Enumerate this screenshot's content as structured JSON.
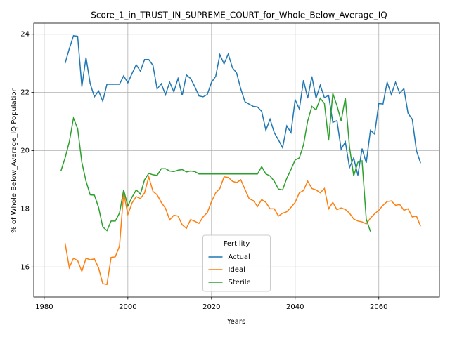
{
  "chart_data": {
    "type": "line",
    "title": "Score_1_in_TRUST_IN_SUPREME_COURT_for_Whole_Below_Average_IQ",
    "xlabel": "Years",
    "ylabel": "% of Whole Below_Average_IQ Population",
    "legend_title": "Fertility",
    "legend": "lower center",
    "grid": true,
    "xlim": [
      1977.5,
      2074.5
    ],
    "xticks": [
      1980,
      2000,
      2020,
      2040,
      2060
    ],
    "ylim": [
      14.97,
      24.38
    ],
    "yticks": [
      16,
      18,
      20,
      22,
      24
    ],
    "x": [
      1984,
      1985,
      1986,
      1987,
      1988,
      1989,
      1990,
      1991,
      1992,
      1993,
      1994,
      1995,
      1996,
      1997,
      1998,
      1999,
      2000,
      2001,
      2002,
      2003,
      2004,
      2005,
      2006,
      2007,
      2008,
      2009,
      2010,
      2011,
      2012,
      2013,
      2014,
      2015,
      2016,
      2017,
      2018,
      2019,
      2020,
      2021,
      2022,
      2023,
      2024,
      2025,
      2026,
      2027,
      2028,
      2029,
      2030,
      2031,
      2032,
      2033,
      2034,
      2035,
      2036,
      2037,
      2038,
      2039,
      2040,
      2041,
      2042,
      2043,
      2044,
      2045,
      2046,
      2047,
      2048,
      2049,
      2050,
      2051,
      2052,
      2053,
      2054,
      2055,
      2056,
      2057,
      2058,
      2059,
      2060,
      2061,
      2062,
      2063,
      2064,
      2065,
      2066,
      2067,
      2068,
      2069,
      2070
    ],
    "series": [
      {
        "name": "Actual",
        "color": "#1f77b4",
        "values": [
          null,
          23.0,
          23.5,
          23.95,
          23.93,
          22.2,
          23.2,
          22.3,
          21.85,
          22.05,
          21.7,
          22.28,
          22.28,
          22.28,
          22.28,
          22.57,
          22.33,
          22.65,
          22.95,
          22.73,
          23.13,
          23.13,
          22.93,
          22.12,
          22.3,
          21.92,
          22.35,
          22.02,
          22.48,
          21.9,
          22.6,
          22.48,
          22.2,
          21.88,
          21.85,
          21.93,
          22.35,
          22.55,
          23.3,
          22.98,
          23.32,
          22.85,
          22.67,
          22.12,
          21.68,
          21.6,
          21.52,
          21.5,
          21.35,
          20.7,
          21.08,
          20.62,
          20.37,
          20.1,
          20.85,
          20.62,
          21.75,
          21.43,
          22.42,
          21.8,
          22.55,
          21.8,
          22.25,
          21.82,
          21.9,
          20.97,
          21.03,
          20.05,
          20.3,
          19.42,
          19.75,
          19.15,
          20.07,
          19.58,
          20.7,
          20.57,
          21.62,
          21.6,
          22.35,
          21.93,
          22.35,
          21.97,
          22.13,
          21.28,
          21.08,
          20.0,
          19.57
        ]
      },
      {
        "name": "Ideal",
        "color": "#ff7f0e",
        "values": [
          null,
          16.82,
          15.98,
          16.3,
          16.22,
          15.85,
          16.3,
          16.25,
          16.28,
          15.97,
          15.43,
          15.4,
          16.33,
          16.35,
          16.72,
          18.55,
          17.8,
          18.2,
          18.42,
          18.35,
          18.55,
          19.1,
          18.6,
          18.48,
          18.22,
          18.02,
          17.62,
          17.78,
          17.75,
          17.45,
          17.33,
          17.63,
          17.57,
          17.5,
          17.72,
          17.87,
          18.25,
          18.55,
          18.7,
          19.1,
          19.08,
          18.95,
          18.9,
          19.0,
          18.67,
          18.35,
          18.28,
          18.08,
          18.32,
          18.22,
          18.0,
          18.0,
          17.75,
          17.85,
          17.9,
          18.05,
          18.22,
          18.55,
          18.63,
          18.95,
          18.7,
          18.65,
          18.55,
          18.7,
          18.0,
          18.22,
          17.97,
          18.03,
          17.98,
          17.85,
          17.65,
          17.58,
          17.55,
          17.48,
          17.68,
          17.83,
          17.95,
          18.12,
          18.25,
          18.27,
          18.12,
          18.15,
          17.95,
          18.0,
          17.72,
          17.75,
          17.4
        ]
      },
      {
        "name": "Sterile",
        "color": "#2ca02c",
        "values": [
          19.3,
          19.75,
          20.3,
          21.12,
          20.75,
          19.6,
          18.95,
          18.48,
          18.47,
          18.05,
          17.38,
          17.25,
          17.58,
          17.58,
          17.85,
          18.65,
          18.1,
          18.4,
          18.65,
          18.5,
          19.0,
          19.22,
          19.17,
          19.15,
          19.38,
          19.38,
          19.3,
          19.28,
          19.33,
          19.35,
          19.27,
          19.3,
          19.28,
          19.2,
          19.2,
          19.2,
          19.2,
          19.2,
          19.2,
          19.2,
          19.2,
          19.2,
          19.2,
          19.2,
          19.2,
          19.2,
          19.2,
          19.2,
          19.45,
          19.2,
          19.13,
          18.95,
          18.68,
          18.65,
          19.05,
          19.35,
          19.68,
          19.75,
          20.2,
          21.02,
          21.52,
          21.4,
          21.8,
          21.62,
          20.35,
          21.97,
          21.55,
          21.02,
          21.82,
          20.12,
          19.13,
          19.6,
          19.65,
          17.65,
          17.22,
          null,
          null,
          null,
          null,
          null,
          null,
          null,
          null,
          null,
          null,
          null,
          null
        ]
      }
    ]
  }
}
